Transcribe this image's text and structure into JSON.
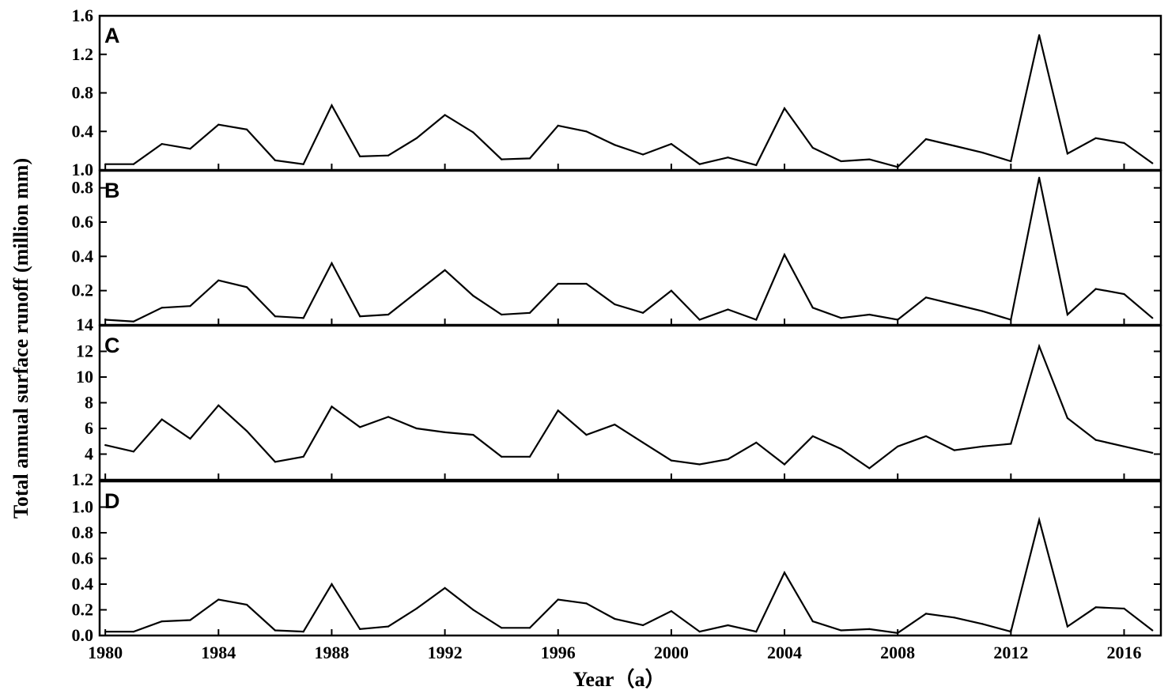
{
  "chart_data": {
    "type": "line",
    "ylabel": "Total annual surface runoff (million mm)",
    "xlabel": "Year（a）",
    "x_ticks": [
      "1980",
      "1984",
      "1988",
      "1992",
      "1996",
      "2000",
      "2004",
      "2008",
      "2012",
      "2016"
    ],
    "x": [
      1980,
      1981,
      1982,
      1983,
      1984,
      1985,
      1986,
      1987,
      1988,
      1989,
      1990,
      1991,
      1992,
      1993,
      1994,
      1995,
      1996,
      1997,
      1998,
      1999,
      2000,
      2001,
      2002,
      2003,
      2004,
      2005,
      2006,
      2007,
      2008,
      2009,
      2010,
      2011,
      2012,
      2013,
      2014,
      2015,
      2016,
      2017
    ],
    "xlim": [
      1979.8,
      2017.3
    ],
    "panels": [
      {
        "label": "A",
        "ylim": [
          0,
          1.6
        ],
        "yticks": [
          0.4,
          0.8,
          1.2,
          1.6
        ],
        "ytick_labels": [
          "0.4",
          "0.8",
          "1.2",
          "1.6"
        ],
        "bottom_tick_label": "1.0",
        "values": [
          0.06,
          0.06,
          0.27,
          0.22,
          0.47,
          0.42,
          0.1,
          0.06,
          0.67,
          0.14,
          0.15,
          0.33,
          0.57,
          0.39,
          0.11,
          0.12,
          0.46,
          0.4,
          0.26,
          0.16,
          0.27,
          0.06,
          0.13,
          0.05,
          0.64,
          0.23,
          0.09,
          0.11,
          0.03,
          0.32,
          0.25,
          0.18,
          0.09,
          1.4,
          0.17,
          0.33,
          0.28,
          0.07
        ]
      },
      {
        "label": "B",
        "ylim": [
          0,
          0.9
        ],
        "yticks": [
          0.2,
          0.4,
          0.6,
          0.8
        ],
        "ytick_labels": [
          "0.2",
          "0.4",
          "0.6",
          "0.8"
        ],
        "bottom_tick_label": "14",
        "values": [
          0.03,
          0.02,
          0.1,
          0.11,
          0.26,
          0.22,
          0.05,
          0.04,
          0.36,
          0.05,
          0.06,
          0.19,
          0.32,
          0.17,
          0.06,
          0.07,
          0.24,
          0.24,
          0.12,
          0.07,
          0.2,
          0.03,
          0.09,
          0.03,
          0.41,
          0.1,
          0.04,
          0.06,
          0.03,
          0.16,
          0.12,
          0.08,
          0.03,
          0.86,
          0.06,
          0.21,
          0.18,
          0.04
        ]
      },
      {
        "label": "C",
        "ylim": [
          2,
          14
        ],
        "yticks": [
          4,
          6,
          8,
          10,
          12
        ],
        "ytick_labels": [
          "4",
          "6",
          "8",
          "10",
          "12"
        ],
        "bottom_tick_label": "1.2",
        "values": [
          4.7,
          4.2,
          6.7,
          5.2,
          7.8,
          5.8,
          3.4,
          3.8,
          7.7,
          6.1,
          6.9,
          6.0,
          5.7,
          5.5,
          3.8,
          3.8,
          7.4,
          5.5,
          6.3,
          4.9,
          3.5,
          3.2,
          3.6,
          4.9,
          3.2,
          5.4,
          4.4,
          2.9,
          4.6,
          5.4,
          4.3,
          4.6,
          4.8,
          12.4,
          6.8,
          5.1,
          4.6,
          4.1
        ]
      },
      {
        "label": "D",
        "ylim": [
          0,
          1.2
        ],
        "yticks": [
          0.0,
          0.2,
          0.4,
          0.6,
          0.8,
          1.0
        ],
        "ytick_labels": [
          "0.0",
          "0.2",
          "0.4",
          "0.6",
          "0.8",
          "1.0"
        ],
        "bottom_tick_label": "",
        "values": [
          0.03,
          0.03,
          0.11,
          0.12,
          0.28,
          0.24,
          0.04,
          0.03,
          0.4,
          0.05,
          0.07,
          0.21,
          0.37,
          0.2,
          0.06,
          0.06,
          0.28,
          0.25,
          0.13,
          0.08,
          0.19,
          0.03,
          0.08,
          0.03,
          0.49,
          0.11,
          0.04,
          0.05,
          0.02,
          0.17,
          0.14,
          0.09,
          0.03,
          0.9,
          0.07,
          0.22,
          0.21,
          0.04
        ]
      }
    ]
  }
}
